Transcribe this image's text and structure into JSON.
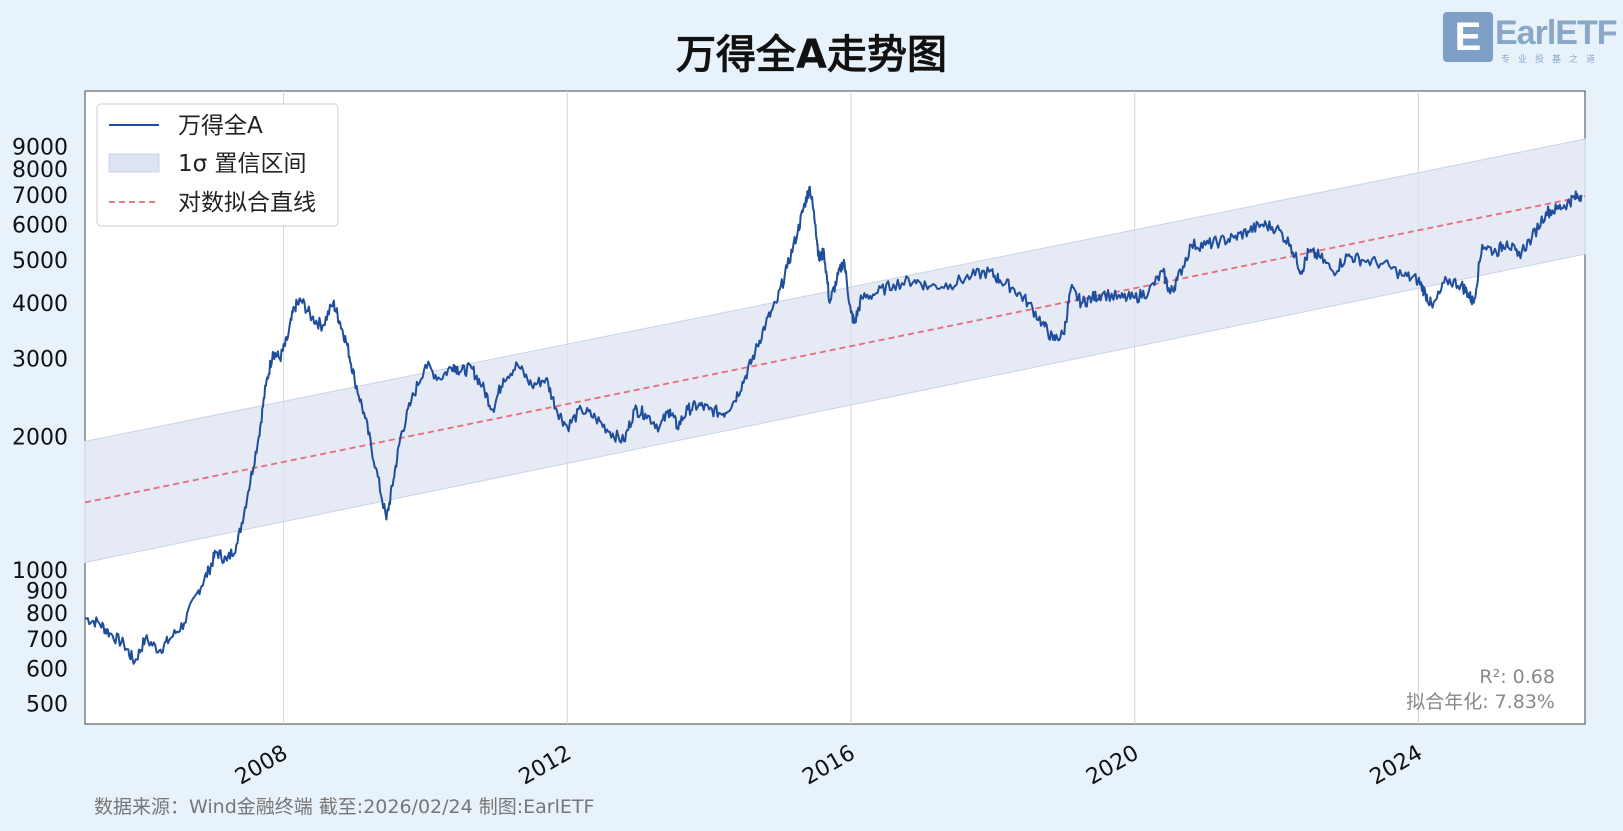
{
  "title": "万得全A走势图",
  "logo": {
    "mark": "E",
    "text": "EarlETF",
    "tagline": "专业投基之道"
  },
  "footer": "数据来源：Wind金融终端 截至:2026/02/24 制图:EarlETF",
  "stats": {
    "r2": "R²: 0.68",
    "annual": "拟合年化: 7.83%"
  },
  "colors": {
    "line": "#1f4e9c",
    "fit": "#e86a78",
    "band": "#dde3f0",
    "grid": "#d4d4d4"
  },
  "chart_data": {
    "type": "line",
    "yscale": "log",
    "ylim": [
      450,
      12000
    ],
    "xlim": [
      2005.2,
      2026.35
    ],
    "x_ticks": [
      2008,
      2012,
      2016,
      2020,
      2024
    ],
    "x_tick_labels": [
      "2008",
      "2012",
      "2016",
      "2020",
      "2024"
    ],
    "y_ticks": [
      500,
      600,
      700,
      800,
      900,
      1000,
      2000,
      3000,
      4000,
      5000,
      6000,
      7000,
      8000,
      9000
    ],
    "y_tick_labels": [
      "500",
      "600",
      "700",
      "800",
      "900",
      "1000",
      "2000",
      "3000",
      "4000",
      "5000",
      "6000",
      "7000",
      "8000",
      "9000"
    ],
    "legend": {
      "placement": "top-left",
      "entries": [
        "万得全A",
        "1σ 置信区间",
        "对数拟合直线"
      ]
    },
    "fit": {
      "x": [
        2005.2,
        2026.35
      ],
      "y": [
        1420,
        6950
      ]
    },
    "band": {
      "x": [
        2005.2,
        2026.35
      ],
      "upper": [
        1950,
        9350
      ],
      "lower": [
        1040,
        5150
      ]
    },
    "series": [
      {
        "name": "万得全A",
        "x": [
          2005.2,
          2005.4,
          2005.55,
          2005.75,
          2005.9,
          2006.05,
          2006.25,
          2006.4,
          2006.6,
          2006.8,
          2006.95,
          2007.05,
          2007.2,
          2007.35,
          2007.5,
          2007.65,
          2007.75,
          2007.85,
          2007.95,
          2008.05,
          2008.15,
          2008.25,
          2008.4,
          2008.55,
          2008.7,
          2008.8,
          2008.9,
          2009.0,
          2009.15,
          2009.3,
          2009.45,
          2009.55,
          2009.65,
          2009.8,
          2010.0,
          2010.2,
          2010.4,
          2010.5,
          2010.65,
          2010.8,
          2010.95,
          2011.1,
          2011.3,
          2011.5,
          2011.7,
          2011.85,
          2012.0,
          2012.2,
          2012.4,
          2012.6,
          2012.8,
          2012.95,
          2013.1,
          2013.3,
          2013.45,
          2013.55,
          2013.7,
          2013.85,
          2014.0,
          2014.2,
          2014.35,
          2014.5,
          2014.65,
          2014.8,
          2014.95,
          2015.1,
          2015.25,
          2015.35,
          2015.42,
          2015.5,
          2015.55,
          2015.62,
          2015.7,
          2015.8,
          2015.9,
          2016.0,
          2016.05,
          2016.15,
          2016.35,
          2016.6,
          2016.9,
          2017.1,
          2017.4,
          2017.7,
          2017.95,
          2018.1,
          2018.3,
          2018.5,
          2018.7,
          2018.85,
          2019.0,
          2019.1,
          2019.25,
          2019.4,
          2019.55,
          2019.8,
          2020.0,
          2020.2,
          2020.4,
          2020.5,
          2020.6,
          2020.8,
          2021.0,
          2021.2,
          2021.4,
          2021.6,
          2021.8,
          2022.0,
          2022.2,
          2022.35,
          2022.45,
          2022.6,
          2022.8,
          2023.0,
          2023.2,
          2023.5,
          2023.8,
          2024.0,
          2024.1,
          2024.2,
          2024.4,
          2024.6,
          2024.7,
          2024.78,
          2024.9,
          2025.1,
          2025.25,
          2025.4,
          2025.6,
          2025.8,
          2025.95,
          2026.1,
          2026.2,
          2026.3
        ],
        "y": [
          780,
          760,
          720,
          680,
          620,
          700,
          660,
          700,
          760,
          900,
          1000,
          1100,
          1050,
          1150,
          1500,
          2000,
          2600,
          3100,
          3000,
          3300,
          3900,
          4050,
          3700,
          3550,
          4000,
          3600,
          3200,
          2700,
          2200,
          1700,
          1300,
          1600,
          2000,
          2400,
          2900,
          2700,
          2900,
          2800,
          2850,
          2600,
          2300,
          2700,
          2900,
          2600,
          2700,
          2300,
          2100,
          2300,
          2200,
          2050,
          1950,
          2300,
          2250,
          2100,
          2300,
          2100,
          2300,
          2350,
          2300,
          2250,
          2400,
          2700,
          3100,
          3600,
          4000,
          4800,
          5800,
          6700,
          7300,
          6000,
          5000,
          5200,
          4000,
          4500,
          5000,
          3800,
          3600,
          4100,
          4200,
          4400,
          4500,
          4350,
          4400,
          4600,
          4700,
          4500,
          4300,
          4000,
          3600,
          3300,
          3400,
          4300,
          4000,
          4100,
          4200,
          4100,
          4100,
          4250,
          4700,
          4200,
          4500,
          5400,
          5400,
          5500,
          5600,
          5800,
          6000,
          5900,
          5400,
          4700,
          5200,
          5100,
          4700,
          5100,
          5000,
          4900,
          4600,
          4500,
          4200,
          3900,
          4500,
          4400,
          4200,
          4000,
          5400,
          5200,
          5500,
          5100,
          5600,
          6400,
          6500,
          6700,
          6900,
          7000
        ]
      }
    ]
  }
}
